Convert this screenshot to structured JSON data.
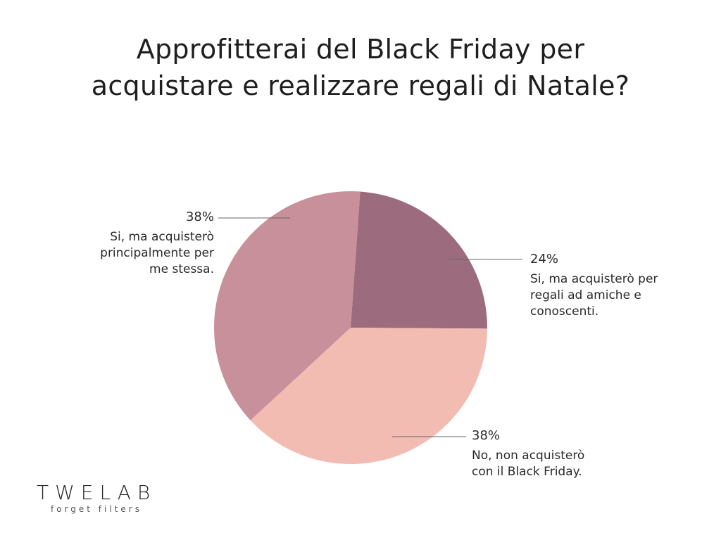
{
  "colors": {
    "slice_1": "#9c6b7e",
    "slice_2": "#f2bcb3",
    "slice_3": "#c8909a",
    "leader": "#666666",
    "text": "#1f1f1f"
  },
  "chart_data": {
    "type": "pie",
    "title_lines": [
      "Approfitterai del Black Friday per",
      "acquistare e realizzare regali di Natale?"
    ],
    "slices": [
      {
        "value": 24,
        "label": "24%",
        "name": "Si, ma acquisterò per\nregali ad amiche e\nconoscenti."
      },
      {
        "value": 38,
        "label": "38%",
        "name": "No, non acquisterò\ncon il Black Friday."
      },
      {
        "value": 38,
        "label": "38%",
        "name": "Si, ma acquisterò\nprincipalmente per\nme stessa."
      }
    ]
  },
  "logo": {
    "text": "TWELAB",
    "tagline": "forget filters"
  }
}
